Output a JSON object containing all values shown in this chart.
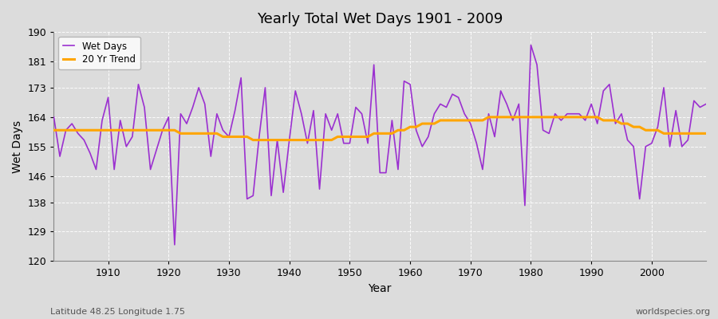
{
  "title": "Yearly Total Wet Days 1901 - 2009",
  "ylabel": "Wet Days",
  "xlabel": "Year",
  "subtitle_left": "Latitude 48.25 Longitude 1.75",
  "subtitle_right": "worldspecies.org",
  "ylim": [
    120,
    190
  ],
  "yticks": [
    120,
    129,
    138,
    146,
    155,
    164,
    173,
    181,
    190
  ],
  "background_color": "#dcdcdc",
  "plot_bg_color": "#dcdcdc",
  "wet_days_color": "#9b30d0",
  "trend_color": "#ffa500",
  "years": [
    1901,
    1902,
    1903,
    1904,
    1905,
    1906,
    1907,
    1908,
    1909,
    1910,
    1911,
    1912,
    1913,
    1914,
    1915,
    1916,
    1917,
    1918,
    1919,
    1920,
    1921,
    1922,
    1923,
    1924,
    1925,
    1926,
    1927,
    1928,
    1929,
    1930,
    1931,
    1932,
    1933,
    1934,
    1935,
    1936,
    1937,
    1938,
    1939,
    1940,
    1941,
    1942,
    1943,
    1944,
    1945,
    1946,
    1947,
    1948,
    1949,
    1950,
    1951,
    1952,
    1953,
    1954,
    1955,
    1956,
    1957,
    1958,
    1959,
    1960,
    1961,
    1962,
    1963,
    1964,
    1965,
    1966,
    1967,
    1968,
    1969,
    1970,
    1971,
    1972,
    1973,
    1974,
    1975,
    1976,
    1977,
    1978,
    1979,
    1980,
    1981,
    1982,
    1983,
    1984,
    1985,
    1986,
    1987,
    1988,
    1989,
    1990,
    1991,
    1992,
    1993,
    1994,
    1995,
    1996,
    1997,
    1998,
    1999,
    2000,
    2001,
    2002,
    2003,
    2004,
    2005,
    2006,
    2007,
    2008,
    2009
  ],
  "wet_days": [
    164,
    152,
    160,
    162,
    159,
    157,
    153,
    148,
    163,
    170,
    148,
    163,
    155,
    158,
    174,
    167,
    148,
    154,
    160,
    164,
    125,
    165,
    162,
    167,
    173,
    168,
    152,
    165,
    160,
    158,
    166,
    176,
    139,
    140,
    158,
    173,
    140,
    157,
    141,
    157,
    172,
    165,
    156,
    166,
    142,
    165,
    160,
    165,
    156,
    156,
    167,
    165,
    156,
    180,
    147,
    147,
    163,
    148,
    175,
    174,
    160,
    155,
    158,
    165,
    168,
    167,
    171,
    170,
    165,
    162,
    156,
    148,
    165,
    158,
    172,
    168,
    163,
    168,
    137,
    186,
    180,
    160,
    159,
    165,
    163,
    165,
    165,
    165,
    163,
    168,
    162,
    172,
    174,
    162,
    165,
    157,
    155,
    139,
    155,
    156,
    161,
    173,
    155,
    166,
    155,
    157,
    169,
    167,
    168
  ],
  "trend": [
    160,
    160,
    160,
    160,
    160,
    160,
    160,
    160,
    160,
    160,
    160,
    160,
    160,
    160,
    160,
    160,
    160,
    160,
    160,
    160,
    160,
    159,
    159,
    159,
    159,
    159,
    159,
    159,
    158,
    158,
    158,
    158,
    158,
    157,
    157,
    157,
    157,
    157,
    157,
    157,
    157,
    157,
    157,
    157,
    157,
    157,
    157,
    158,
    158,
    158,
    158,
    158,
    158,
    159,
    159,
    159,
    159,
    160,
    160,
    161,
    161,
    162,
    162,
    162,
    163,
    163,
    163,
    163,
    163,
    163,
    163,
    163,
    164,
    164,
    164,
    164,
    164,
    164,
    164,
    164,
    164,
    164,
    164,
    164,
    164,
    164,
    164,
    164,
    164,
    164,
    164,
    163,
    163,
    163,
    162,
    162,
    161,
    161,
    160,
    160,
    160,
    159,
    159,
    159,
    159,
    159,
    159,
    159,
    159
  ]
}
